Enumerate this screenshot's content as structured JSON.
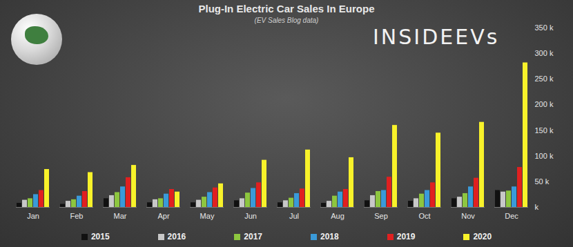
{
  "chart_data": {
    "type": "bar",
    "title": "Plug-In Electric Car Sales In Europe",
    "subtitle": "(EV Sales Blog data)",
    "annotations": [
      "INSIDEEVs"
    ],
    "categories": [
      "Jan",
      "Feb",
      "Mar",
      "Apr",
      "May",
      "Jun",
      "Jul",
      "Aug",
      "Sep",
      "Oct",
      "Nov",
      "Dec"
    ],
    "series": [
      {
        "name": "2015",
        "color": "#111111",
        "values": [
          8000,
          6000,
          17000,
          9000,
          9000,
          13000,
          9000,
          8000,
          13000,
          12000,
          17000,
          33000
        ]
      },
      {
        "name": "2016",
        "color": "#c8c8c8",
        "values": [
          14000,
          12000,
          23000,
          15000,
          14000,
          17000,
          13000,
          12000,
          23000,
          17000,
          20000,
          30000
        ]
      },
      {
        "name": "2017",
        "color": "#8dc63f",
        "values": [
          17000,
          15000,
          29000,
          17000,
          20000,
          28000,
          18000,
          22000,
          31000,
          26000,
          27000,
          32000
        ]
      },
      {
        "name": "2018",
        "color": "#3a9ad9",
        "values": [
          25000,
          22000,
          40000,
          26000,
          29000,
          37000,
          27000,
          30000,
          33000,
          33000,
          40000,
          40000
        ]
      },
      {
        "name": "2019",
        "color": "#e02020",
        "values": [
          33000,
          31000,
          58000,
          35000,
          38000,
          48000,
          36000,
          35000,
          59000,
          48000,
          57000,
          78000
        ]
      },
      {
        "name": "2020",
        "color": "#f8f22a",
        "values": [
          74000,
          68000,
          82000,
          30000,
          46000,
          92000,
          112000,
          97000,
          160000,
          145000,
          166000,
          282000
        ]
      }
    ],
    "ylim": [
      0,
      350000
    ],
    "yticks": [
      {
        "value": 0,
        "label": "k"
      },
      {
        "value": 50000,
        "label": "50 k"
      },
      {
        "value": 100000,
        "label": "100 k"
      },
      {
        "value": 150000,
        "label": "150 k"
      },
      {
        "value": 200000,
        "label": "200 k"
      },
      {
        "value": 250000,
        "label": "250 k"
      },
      {
        "value": 300000,
        "label": "300 k"
      },
      {
        "value": 350000,
        "label": "350 k"
      }
    ],
    "grid": false,
    "legend": "bottom"
  }
}
